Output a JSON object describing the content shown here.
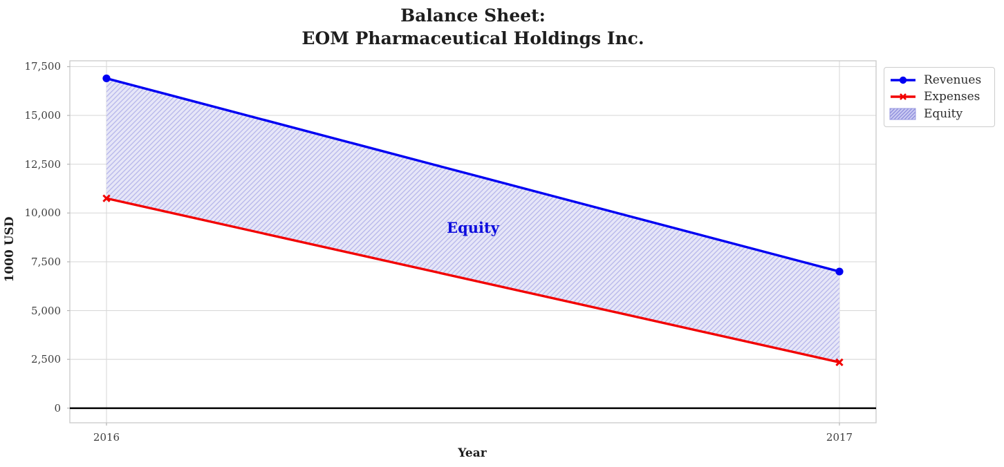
{
  "title_text": "Balance Sheet:\nEOM Pharmaceutical Holdings Inc.",
  "chart_data": {
    "type": "line",
    "title": "Balance Sheet: EOM Pharmaceutical Holdings Inc.",
    "xlabel": "Year",
    "ylabel": "1000 USD",
    "x": [
      2016,
      2017
    ],
    "xtick_labels": [
      "2016",
      "2017"
    ],
    "series": [
      {
        "name": "Revenues",
        "values": [
          16900,
          7000
        ],
        "color": "#0000f2",
        "marker": "circle"
      },
      {
        "name": "Expenses",
        "values": [
          10750,
          2350
        ],
        "color": "#f20000",
        "marker": "x"
      }
    ],
    "area": {
      "name": "Equity",
      "between": [
        "Revenues",
        "Expenses"
      ],
      "fill_color": "#e6e6f8",
      "hatch_color": "#b6b6ea",
      "hatch": "///",
      "legend_fill_color": "#ccccf2",
      "legend_hatch_color": "#8f8fdd"
    },
    "annotation": {
      "text": "Equity",
      "x": 2016.5,
      "y": 9250,
      "color": "#0d0dde"
    },
    "yticks": [
      0,
      2500,
      5000,
      7500,
      10000,
      12500,
      15000,
      17500
    ],
    "ytick_labels": [
      "0",
      "2,500",
      "5,000",
      "7,500",
      "10,000",
      "12,500",
      "15,000",
      "17,500"
    ],
    "xlim": [
      2015.95,
      2017.05
    ],
    "ylim": [
      -750,
      17800
    ],
    "grid": true,
    "grid_color": "#d9d9d9",
    "spine_color": "#c9c9c9",
    "tick_color": "#b5b5b5",
    "zero_line": {
      "y": 0,
      "color": "#000000"
    },
    "legend_position": "outside upper right",
    "legend_items": [
      "Revenues",
      "Expenses",
      "Equity"
    ]
  }
}
